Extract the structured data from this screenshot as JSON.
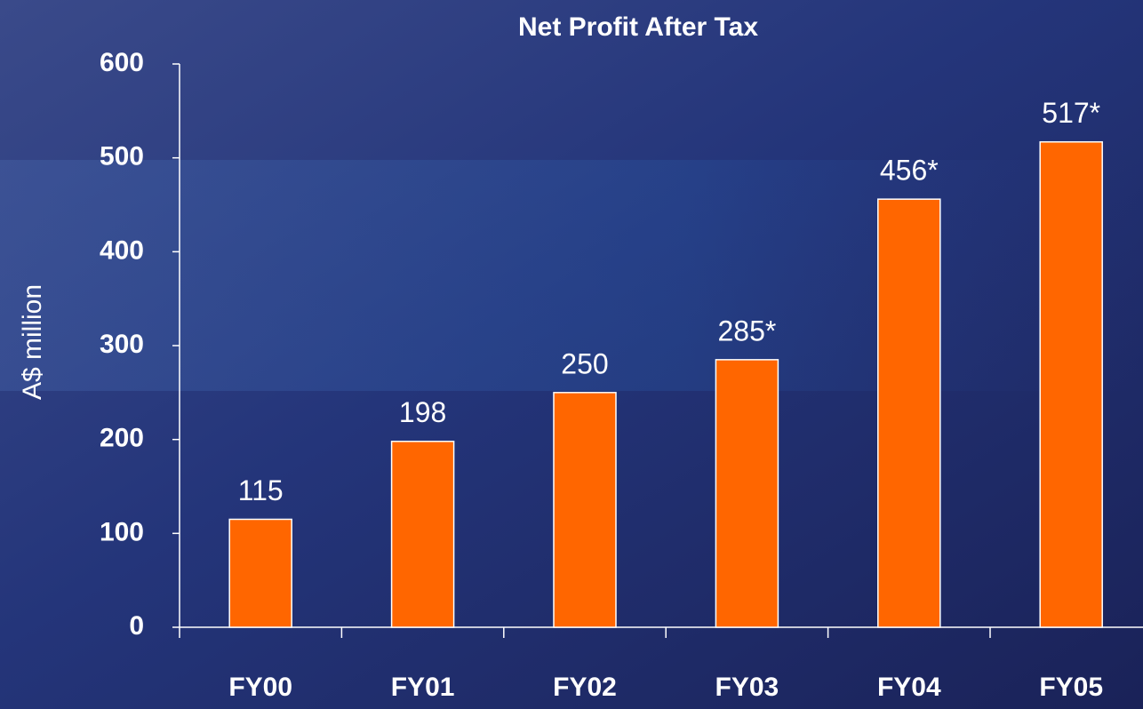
{
  "chart_data": {
    "type": "bar",
    "title": "Net Profit After Tax",
    "y_label": "A$ million",
    "categories": [
      "FY00",
      "FY01",
      "FY02",
      "FY03",
      "FY04",
      "FY05"
    ],
    "values": [
      115,
      198,
      250,
      285,
      456,
      517
    ],
    "value_labels": [
      "115",
      "198",
      "250",
      "285*",
      "456*",
      "517*"
    ],
    "color": "#ff6600",
    "ylim": [
      0,
      600
    ],
    "yticks": [
      0,
      100,
      200,
      300,
      400,
      500,
      600
    ],
    "grid": false
  }
}
